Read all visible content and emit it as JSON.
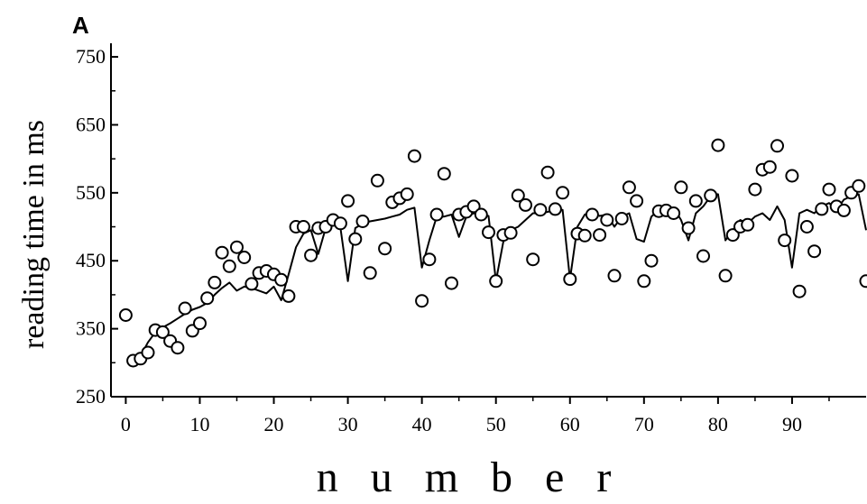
{
  "chart_data": {
    "type": "scatter",
    "panel_label": "A",
    "xlabel": "n u m b e r",
    "ylabel": "reading time in ms",
    "xlim": [
      -2,
      100
    ],
    "ylim": [
      250,
      770
    ],
    "xticks": [
      0,
      10,
      20,
      30,
      40,
      50,
      60,
      70,
      80,
      90
    ],
    "yticks": [
      250,
      350,
      450,
      550,
      650,
      750
    ],
    "grid": false,
    "series": [
      {
        "kind": "points",
        "marker": "open-circle",
        "points": [
          [
            0,
            370
          ],
          [
            1,
            303
          ],
          [
            2,
            306
          ],
          [
            3,
            315
          ],
          [
            4,
            348
          ],
          [
            5,
            345
          ],
          [
            6,
            332
          ],
          [
            7,
            322
          ],
          [
            8,
            380
          ],
          [
            9,
            347
          ],
          [
            10,
            358
          ],
          [
            11,
            395
          ],
          [
            12,
            418
          ],
          [
            13,
            462
          ],
          [
            14,
            442
          ],
          [
            15,
            470
          ],
          [
            16,
            455
          ],
          [
            17,
            416
          ],
          [
            18,
            432
          ],
          [
            19,
            435
          ],
          [
            20,
            430
          ],
          [
            21,
            422
          ],
          [
            22,
            398
          ],
          [
            23,
            500
          ],
          [
            24,
            500
          ],
          [
            25,
            458
          ],
          [
            26,
            498
          ],
          [
            27,
            500
          ],
          [
            28,
            510
          ],
          [
            29,
            505
          ],
          [
            30,
            538
          ],
          [
            31,
            482
          ],
          [
            32,
            508
          ],
          [
            33,
            432
          ],
          [
            34,
            568
          ],
          [
            35,
            468
          ],
          [
            36,
            536
          ],
          [
            37,
            542
          ],
          [
            38,
            548
          ],
          [
            39,
            604
          ],
          [
            40,
            391
          ],
          [
            41,
            452
          ],
          [
            42,
            518
          ],
          [
            43,
            578
          ],
          [
            44,
            417
          ],
          [
            45,
            518
          ],
          [
            46,
            522
          ],
          [
            47,
            530
          ],
          [
            48,
            518
          ],
          [
            49,
            492
          ],
          [
            50,
            420
          ],
          [
            51,
            488
          ],
          [
            52,
            491
          ],
          [
            53,
            546
          ],
          [
            54,
            532
          ],
          [
            55,
            452
          ],
          [
            56,
            525
          ],
          [
            57,
            580
          ],
          [
            58,
            526
          ],
          [
            59,
            550
          ],
          [
            60,
            423
          ],
          [
            61,
            490
          ],
          [
            62,
            487
          ],
          [
            63,
            518
          ],
          [
            64,
            488
          ],
          [
            65,
            510
          ],
          [
            66,
            428
          ],
          [
            67,
            512
          ],
          [
            68,
            558
          ],
          [
            69,
            538
          ],
          [
            70,
            420
          ],
          [
            71,
            450
          ],
          [
            72,
            523
          ],
          [
            73,
            524
          ],
          [
            74,
            520
          ],
          [
            75,
            558
          ],
          [
            76,
            498
          ],
          [
            77,
            538
          ],
          [
            78,
            457
          ],
          [
            79,
            546
          ],
          [
            80,
            620
          ],
          [
            81,
            428
          ],
          [
            82,
            488
          ],
          [
            83,
            500
          ],
          [
            84,
            503
          ],
          [
            85,
            555
          ],
          [
            86,
            584
          ],
          [
            87,
            588
          ],
          [
            88,
            619
          ],
          [
            89,
            480
          ],
          [
            90,
            575
          ],
          [
            91,
            405
          ],
          [
            92,
            500
          ],
          [
            93,
            464
          ],
          [
            94,
            526
          ],
          [
            95,
            555
          ],
          [
            96,
            530
          ],
          [
            97,
            524
          ],
          [
            98,
            550
          ],
          [
            99,
            560
          ],
          [
            100,
            420
          ]
        ]
      },
      {
        "kind": "line",
        "values": [
          [
            1,
            300
          ],
          [
            2,
            310
          ],
          [
            3,
            330
          ],
          [
            4,
            345
          ],
          [
            5,
            352
          ],
          [
            6,
            358
          ],
          [
            7,
            365
          ],
          [
            8,
            372
          ],
          [
            9,
            378
          ],
          [
            10,
            382
          ],
          [
            11,
            388
          ],
          [
            12,
            400
          ],
          [
            13,
            410
          ],
          [
            14,
            418
          ],
          [
            15,
            406
          ],
          [
            16,
            412
          ],
          [
            17,
            410
          ],
          [
            18,
            406
          ],
          [
            19,
            402
          ],
          [
            20,
            412
          ],
          [
            21,
            392
          ],
          [
            22,
            430
          ],
          [
            23,
            470
          ],
          [
            24,
            490
          ],
          [
            25,
            495
          ],
          [
            26,
            460
          ],
          [
            27,
            498
          ],
          [
            28,
            505
          ],
          [
            29,
            498
          ],
          [
            30,
            420
          ],
          [
            31,
            498
          ],
          [
            32,
            505
          ],
          [
            33,
            508
          ],
          [
            34,
            510
          ],
          [
            35,
            512
          ],
          [
            36,
            515
          ],
          [
            37,
            518
          ],
          [
            38,
            525
          ],
          [
            39,
            528
          ],
          [
            40,
            440
          ],
          [
            41,
            480
          ],
          [
            42,
            515
          ],
          [
            43,
            515
          ],
          [
            44,
            518
          ],
          [
            45,
            485
          ],
          [
            46,
            515
          ],
          [
            47,
            520
          ],
          [
            48,
            518
          ],
          [
            49,
            516
          ],
          [
            50,
            420
          ],
          [
            51,
            478
          ],
          [
            52,
            495
          ],
          [
            53,
            500
          ],
          [
            54,
            510
          ],
          [
            55,
            520
          ],
          [
            56,
            520
          ],
          [
            57,
            522
          ],
          [
            58,
            525
          ],
          [
            59,
            525
          ],
          [
            60,
            423
          ],
          [
            61,
            500
          ],
          [
            62,
            518
          ],
          [
            63,
            522
          ],
          [
            64,
            516
          ],
          [
            65,
            518
          ],
          [
            66,
            500
          ],
          [
            67,
            515
          ],
          [
            68,
            520
          ],
          [
            69,
            482
          ],
          [
            70,
            478
          ],
          [
            71,
            515
          ],
          [
            72,
            525
          ],
          [
            73,
            525
          ],
          [
            74,
            528
          ],
          [
            75,
            510
          ],
          [
            76,
            480
          ],
          [
            77,
            520
          ],
          [
            78,
            530
          ],
          [
            79,
            545
          ],
          [
            80,
            548
          ],
          [
            81,
            480
          ],
          [
            82,
            495
          ],
          [
            83,
            510
          ],
          [
            84,
            505
          ],
          [
            85,
            515
          ],
          [
            86,
            520
          ],
          [
            87,
            510
          ],
          [
            88,
            530
          ],
          [
            89,
            510
          ],
          [
            90,
            440
          ],
          [
            91,
            520
          ],
          [
            92,
            525
          ],
          [
            93,
            520
          ],
          [
            94,
            530
          ],
          [
            95,
            535
          ],
          [
            96,
            525
          ],
          [
            97,
            540
          ],
          [
            98,
            545
          ],
          [
            99,
            548
          ],
          [
            100,
            495
          ]
        ]
      }
    ]
  }
}
